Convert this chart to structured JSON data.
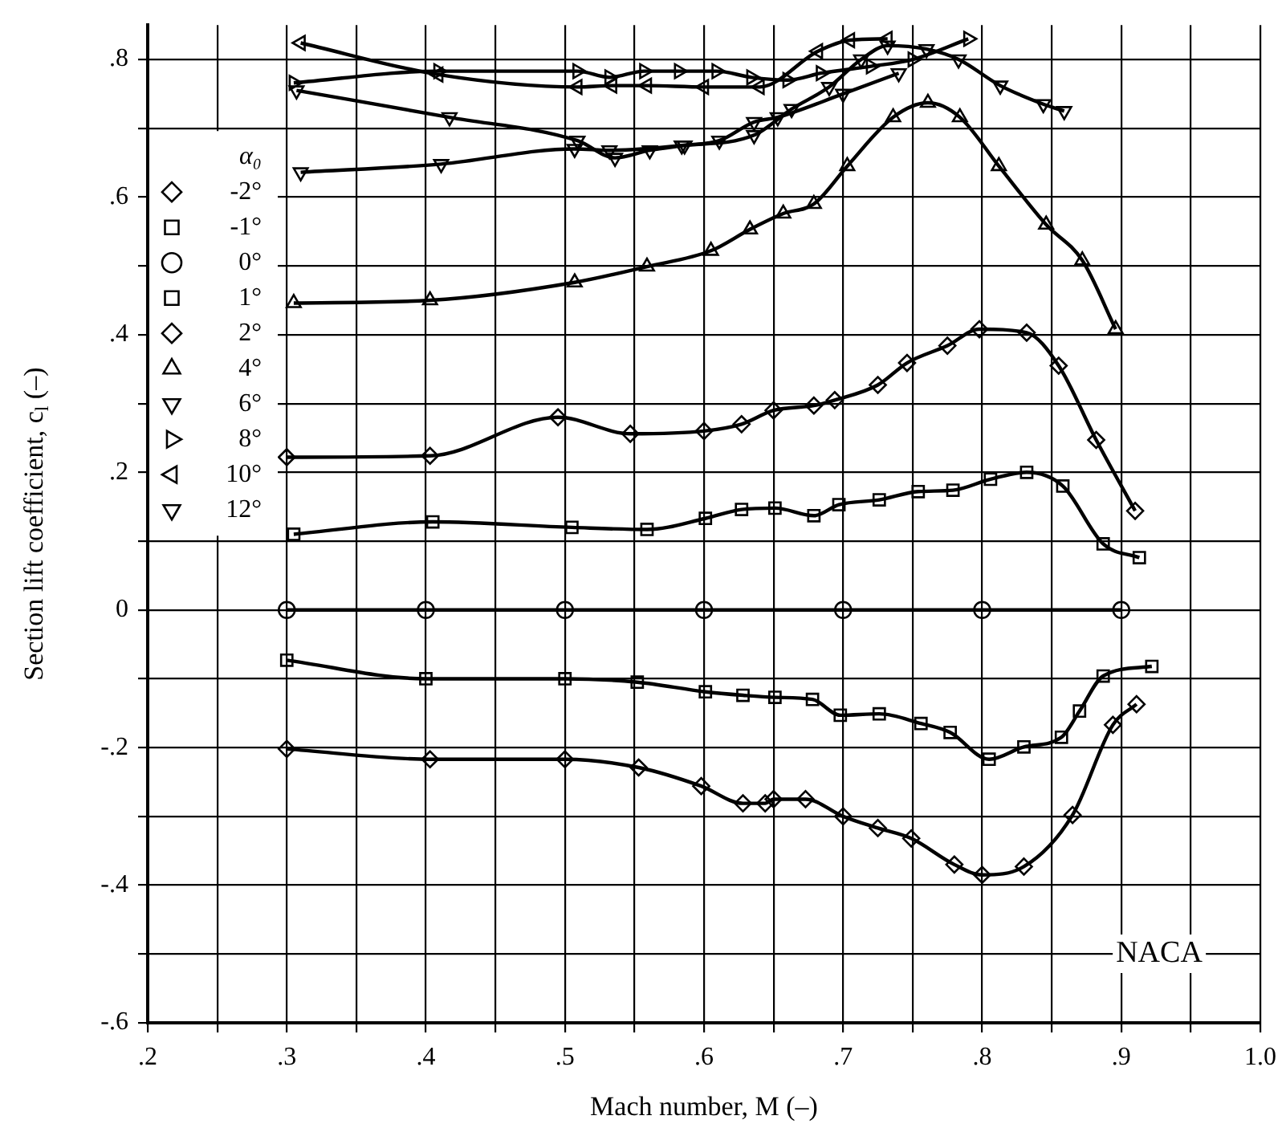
{
  "chart_data": {
    "type": "line",
    "xlabel": "Mach number, M (–)",
    "ylabel": "Section lift coefficient, c$_{l}$ (–)",
    "legend_title": "α₀",
    "legend": "top left",
    "grid": true,
    "annotations": [
      "NACA"
    ],
    "xlim": [
      0.2,
      1.0
    ],
    "ylim": [
      -0.6,
      0.85
    ],
    "xticks": [
      {
        "value": 0.2,
        "label": ".2"
      },
      {
        "value": 0.25,
        "label": null
      },
      {
        "value": 0.3,
        "label": ".3"
      },
      {
        "value": 0.35,
        "label": null
      },
      {
        "value": 0.4,
        "label": ".4"
      },
      {
        "value": 0.45,
        "label": null
      },
      {
        "value": 0.5,
        "label": ".5"
      },
      {
        "value": 0.55,
        "label": null
      },
      {
        "value": 0.6,
        "label": ".6"
      },
      {
        "value": 0.65,
        "label": null
      },
      {
        "value": 0.7,
        "label": ".7"
      },
      {
        "value": 0.75,
        "label": null
      },
      {
        "value": 0.8,
        "label": ".8"
      },
      {
        "value": 0.85,
        "label": null
      },
      {
        "value": 0.9,
        "label": ".9"
      },
      {
        "value": 0.95,
        "label": null
      },
      {
        "value": 1.0,
        "label": "1.0"
      }
    ],
    "yticks": [
      {
        "value": -0.6,
        "label": "-.6"
      },
      {
        "value": -0.5,
        "label": null
      },
      {
        "value": -0.4,
        "label": "-.4"
      },
      {
        "value": -0.3,
        "label": null
      },
      {
        "value": -0.2,
        "label": "-.2"
      },
      {
        "value": -0.1,
        "label": null
      },
      0,
      {
        "value": 0.1,
        "label": null
      },
      {
        "value": 0.2,
        "label": ".2"
      },
      {
        "value": 0.3,
        "label": null
      },
      {
        "value": 0.4,
        "label": ".4"
      },
      {
        "value": 0.5,
        "label": null
      },
      {
        "value": 0.6,
        "label": ".6"
      },
      {
        "value": 0.7,
        "label": null
      },
      {
        "value": 0.8,
        "label": ".8"
      }
    ],
    "series": [
      {
        "name": "-2°",
        "color": "#000000",
        "marker": "diamond",
        "x": [
          0.3,
          0.403,
          0.5,
          0.553,
          0.598,
          0.628,
          0.644,
          0.65,
          0.673,
          0.7,
          0.725,
          0.749,
          0.78,
          0.8,
          0.83,
          0.865,
          0.894,
          0.911
        ],
        "values": [
          -0.202,
          -0.217,
          -0.217,
          -0.229,
          -0.256,
          -0.281,
          -0.281,
          -0.275,
          -0.275,
          -0.3,
          -0.317,
          -0.332,
          -0.37,
          -0.385,
          -0.373,
          -0.298,
          -0.167,
          -0.137
        ]
      },
      {
        "name": "-1°",
        "color": "#000000",
        "marker": "square",
        "x": [
          0.3,
          0.4,
          0.5,
          0.552,
          0.601,
          0.628,
          0.651,
          0.678,
          0.698,
          0.726,
          0.756,
          0.777,
          0.805,
          0.83,
          0.857,
          0.87,
          0.887,
          0.922
        ],
        "values": [
          -0.073,
          -0.1,
          -0.1,
          -0.105,
          -0.119,
          -0.124,
          -0.127,
          -0.13,
          -0.153,
          -0.151,
          -0.165,
          -0.178,
          -0.217,
          -0.199,
          -0.185,
          -0.147,
          -0.096,
          -0.082
        ]
      },
      {
        "name": "0°",
        "color": "#000000",
        "marker": "circle",
        "x": [
          0.3,
          0.4,
          0.5,
          0.6,
          0.7,
          0.8,
          0.9
        ],
        "values": [
          0,
          0,
          0,
          0,
          0,
          0,
          0
        ]
      },
      {
        "name": "1°",
        "color": "#000000",
        "marker": "square",
        "x": [
          0.305,
          0.405,
          0.505,
          0.559,
          0.601,
          0.627,
          0.651,
          0.679,
          0.697,
          0.726,
          0.754,
          0.779,
          0.806,
          0.832,
          0.858,
          0.887,
          0.913
        ],
        "values": [
          0.11,
          0.128,
          0.12,
          0.117,
          0.133,
          0.146,
          0.148,
          0.137,
          0.153,
          0.16,
          0.172,
          0.174,
          0.19,
          0.2,
          0.18,
          0.096,
          0.076
        ]
      },
      {
        "name": "2°",
        "color": "#000000",
        "marker": "diamond",
        "x": [
          0.3,
          0.403,
          0.495,
          0.547,
          0.6,
          0.627,
          0.65,
          0.679,
          0.694,
          0.725,
          0.746,
          0.775,
          0.798,
          0.832,
          0.855,
          0.882,
          0.91
        ],
        "values": [
          0.222,
          0.224,
          0.28,
          0.256,
          0.26,
          0.27,
          0.29,
          0.297,
          0.305,
          0.327,
          0.359,
          0.384,
          0.408,
          0.403,
          0.355,
          0.247,
          0.144
        ]
      },
      {
        "name": "4°",
        "color": "#000000",
        "marker": "triangle",
        "x": [
          0.305,
          0.403,
          0.507,
          0.559,
          0.605,
          0.633,
          0.657,
          0.679,
          0.703,
          0.736,
          0.761,
          0.784,
          0.812,
          0.846,
          0.872,
          0.896
        ],
        "values": [
          0.446,
          0.45,
          0.476,
          0.499,
          0.522,
          0.553,
          0.576,
          0.59,
          0.645,
          0.716,
          0.737,
          0.716,
          0.645,
          0.56,
          0.508,
          0.408
        ]
      },
      {
        "name": "6°",
        "color": "#000000",
        "marker": "triangle-down",
        "x": [
          0.31,
          0.411,
          0.507,
          0.532,
          0.559,
          0.584,
          0.611,
          0.636,
          0.663,
          0.69,
          0.713,
          0.732,
          0.76,
          0.783,
          0.813,
          0.844,
          0.859
        ],
        "values": [
          0.636,
          0.648,
          0.67,
          0.668,
          null,
          0.675,
          null,
          0.69,
          0.728,
          0.76,
          0.8,
          0.82,
          0.815,
          0.8,
          0.762,
          0.735,
          0.725
        ]
      },
      {
        "name": "8°",
        "color": "#000000",
        "marker": "triangle-right",
        "x": [
          0.305,
          0.409,
          0.509,
          0.532,
          0.557,
          0.582,
          0.609,
          0.634,
          0.66,
          0.684,
          0.72,
          0.75,
          0.79
        ],
        "values": [
          0.766,
          0.783,
          0.783,
          0.774,
          0.783,
          0.783,
          0.783,
          0.774,
          0.77,
          0.78,
          0.79,
          0.8,
          0.83
        ]
      },
      {
        "name": "10°",
        "color": "#000000",
        "marker": "triangle-left",
        "x": [
          0.31,
          0.409,
          0.509,
          0.534,
          0.559,
          0.6,
          0.64,
          0.682,
          0.705,
          0.732
        ],
        "values": [
          0.824,
          0.778,
          0.76,
          0.762,
          0.762,
          0.76,
          0.76,
          0.812,
          0.828,
          0.83
        ]
      },
      {
        "name": "12°",
        "color": "#000000",
        "marker": "triangle-down",
        "x": [
          0.307,
          0.417,
          0.509,
          0.536,
          0.561,
          0.586,
          0.611,
          0.636,
          0.653,
          0.7,
          0.74
        ],
        "values": [
          0.755,
          0.716,
          0.682,
          0.657,
          0.668,
          0.675,
          0.682,
          0.709,
          0.716,
          0.75,
          0.78
        ]
      }
    ]
  }
}
